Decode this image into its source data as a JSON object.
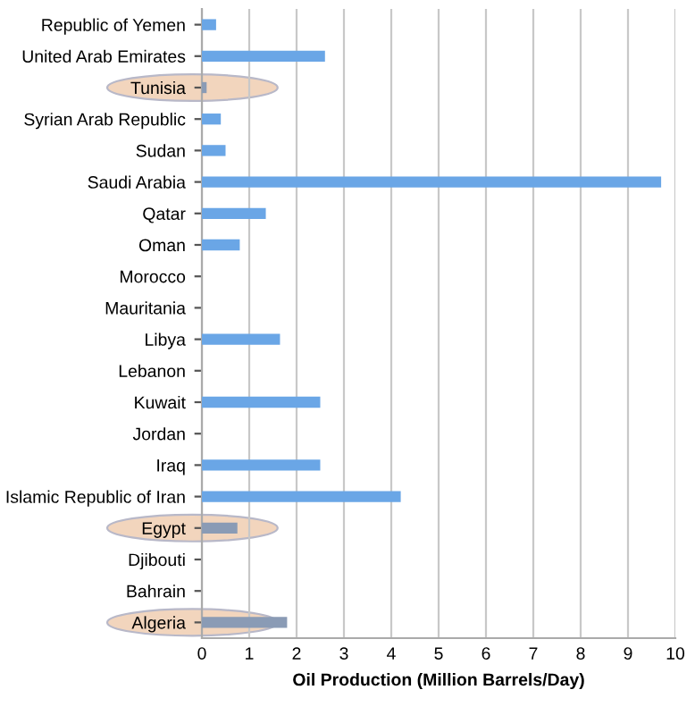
{
  "chart_data": {
    "type": "bar",
    "orientation": "horizontal",
    "categories": [
      "Republic of Yemen",
      "United Arab Emirates",
      "Tunisia",
      "Syrian Arab Republic",
      "Sudan",
      "Saudi Arabia",
      "Qatar",
      "Oman",
      "Morocco",
      "Mauritania",
      "Libya",
      "Lebanon",
      "Kuwait",
      "Jordan",
      "Iraq",
      "Islamic Republic of Iran",
      "Egypt",
      "Djibouti",
      "Bahrain",
      "Algeria"
    ],
    "values": [
      0.3,
      2.6,
      0.1,
      0.4,
      0.5,
      9.7,
      1.35,
      0.8,
      0,
      0,
      1.65,
      0,
      2.5,
      0,
      2.5,
      4.2,
      0.75,
      0,
      0,
      1.8
    ],
    "colors": [
      "#6aa6e6",
      "#6aa6e6",
      "#8a9bb5",
      "#6aa6e6",
      "#6aa6e6",
      "#6aa6e6",
      "#6aa6e6",
      "#6aa6e6",
      "#6aa6e6",
      "#6aa6e6",
      "#6aa6e6",
      "#6aa6e6",
      "#6aa6e6",
      "#6aa6e6",
      "#6aa6e6",
      "#6aa6e6",
      "#8a9bb5",
      "#6aa6e6",
      "#6aa6e6",
      "#8a9bb5"
    ],
    "xlabel": "Oil Production (Million Barrels/Day)",
    "xlim": [
      0,
      10
    ],
    "xticks": [
      0,
      1,
      2,
      3,
      4,
      5,
      6,
      7,
      8,
      9,
      10
    ],
    "grid": "x"
  }
}
